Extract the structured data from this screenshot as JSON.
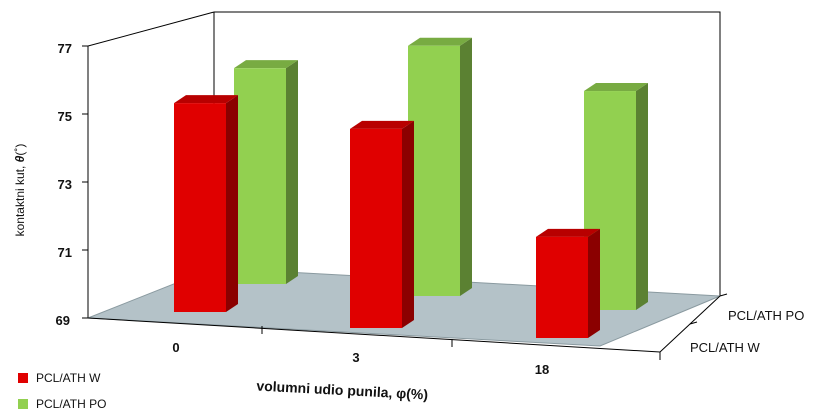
{
  "chart_data": {
    "type": "bar",
    "title": "",
    "xlabel": "volumni udio punila, φ(%)",
    "ylabel_text": "kontaktni kut, ",
    "ylabel_symbol": "θ",
    "ylabel_unit": "(˚)",
    "categories": [
      "0",
      "3",
      "18"
    ],
    "ylim": [
      69,
      77
    ],
    "yticks": [
      "69",
      "71",
      "73",
      "75",
      "77"
    ],
    "depth_labels": [
      "PCL/ATH PO",
      "PCL/ATH W"
    ],
    "series": [
      {
        "name": "PCL/ATH W",
        "values": [
          75.4,
          75.1,
          72.1
        ],
        "color": "#e00000"
      },
      {
        "name": "PCL/ATH PO",
        "values": [
          75.9,
          77.0,
          76.0
        ],
        "color": "#92d050"
      }
    ],
    "grid": false,
    "legend_position": "bottom-left"
  }
}
